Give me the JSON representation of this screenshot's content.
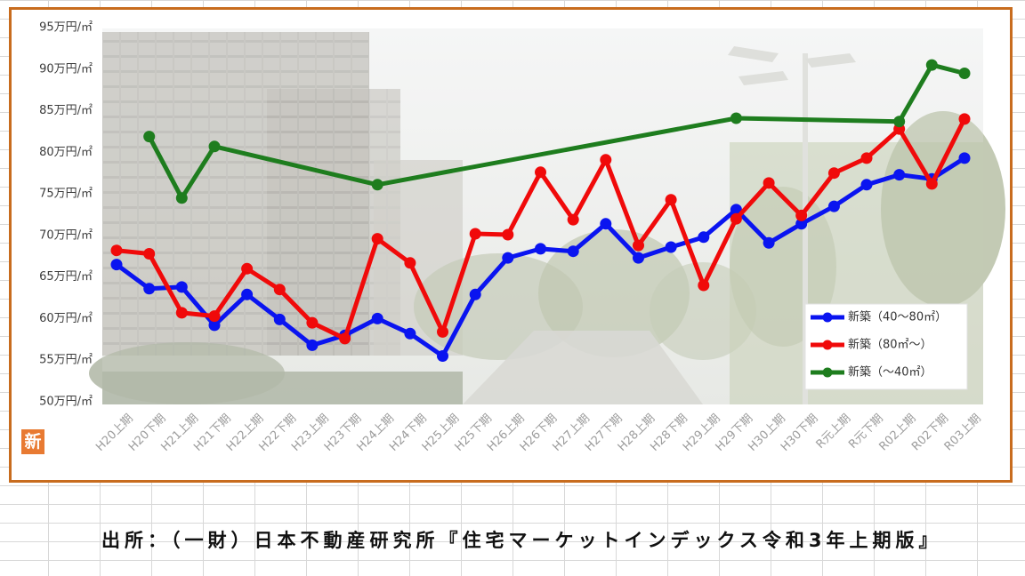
{
  "chart_data": {
    "type": "line",
    "ylim": [
      50,
      95
    ],
    "grid": false,
    "legend_position": "bottom-right",
    "y_ticks": [
      {
        "value": 95,
        "label": "95万円/㎡"
      },
      {
        "value": 90,
        "label": "90万円/㎡"
      },
      {
        "value": 85,
        "label": "85万円/㎡"
      },
      {
        "value": 80,
        "label": "80万円/㎡"
      },
      {
        "value": 75,
        "label": "75万円/㎡"
      },
      {
        "value": 70,
        "label": "70万円/㎡"
      },
      {
        "value": 65,
        "label": "65万円/㎡"
      },
      {
        "value": 60,
        "label": "60万円/㎡"
      },
      {
        "value": 55,
        "label": "55万円/㎡"
      },
      {
        "value": 50,
        "label": "50万円/㎡"
      }
    ],
    "categories": [
      "H20上期",
      "H20下期",
      "H21上期",
      "H21下期",
      "H22上期",
      "H22下期",
      "H23上期",
      "H23下期",
      "H24上期",
      "H24下期",
      "H25上期",
      "H25下期",
      "H26上期",
      "H26下期",
      "H27上期",
      "H27下期",
      "H28上期",
      "H28下期",
      "H29上期",
      "H29下期",
      "H30上期",
      "H30下期",
      "R元上期",
      "R元下期",
      "R02上期",
      "R02下期",
      "R03上期"
    ],
    "series": [
      {
        "name": "新築（40～80㎡）",
        "color": "#0a14f0",
        "values": [
          66.5,
          63.6,
          63.8,
          59.2,
          62.9,
          59.9,
          56.8,
          58.0,
          60.0,
          58.2,
          55.5,
          62.9,
          67.3,
          68.4,
          68.1,
          71.4,
          67.3,
          68.6,
          69.8,
          73.1,
          69.1,
          71.4,
          73.5,
          76.1,
          77.3,
          76.8,
          79.3
        ]
      },
      {
        "name": "新築（80㎡～）",
        "color": "#f00a0a",
        "values": [
          68.2,
          67.8,
          60.7,
          60.3,
          66.0,
          63.5,
          59.5,
          57.6,
          69.6,
          66.7,
          58.4,
          70.2,
          70.1,
          77.6,
          71.9,
          79.1,
          68.8,
          74.3,
          64.0,
          72.0,
          76.3,
          72.4,
          77.5,
          79.3,
          82.8,
          76.2,
          84.0
        ]
      },
      {
        "name": "新築（～40㎡）",
        "color": "#1e7d1e",
        "values": [
          null,
          81.9,
          74.5,
          80.7,
          null,
          null,
          null,
          null,
          76.1,
          null,
          null,
          null,
          null,
          null,
          null,
          null,
          null,
          null,
          null,
          84.1,
          null,
          null,
          null,
          null,
          83.7,
          90.5,
          89.5
        ]
      }
    ]
  },
  "logo": {
    "text": "新",
    "color": "#e87a32"
  },
  "source": "出所：（一財）日本不動産研究所『住宅マーケットインデックス令和3年上期版』",
  "colors": {
    "frame": "#c86c1e"
  }
}
